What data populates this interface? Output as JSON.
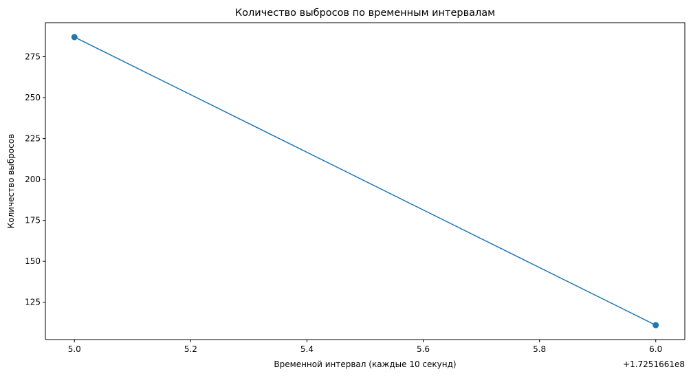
{
  "chart_data": {
    "type": "line",
    "title": "Количество выбросов по временным интервалам",
    "xlabel": "Временной интервал (каждые 10 секунд)",
    "ylabel": "Количество выбросов",
    "x_offset_label": "+1.7251661e8",
    "x": [
      5.0,
      6.0
    ],
    "series": [
      {
        "values": [
          287,
          111
        ]
      }
    ],
    "xlim": [
      4.95,
      6.05
    ],
    "ylim": [
      102.2,
      295.8
    ],
    "x_ticks": [
      5.0,
      5.2,
      5.4,
      5.6,
      5.8,
      6.0
    ],
    "x_tick_labels": [
      "5.0",
      "5.2",
      "5.4",
      "5.6",
      "5.8",
      "6.0"
    ],
    "y_ticks": [
      125,
      150,
      175,
      200,
      225,
      250,
      275
    ],
    "y_tick_labels": [
      "125",
      "150",
      "175",
      "200",
      "225",
      "250",
      "275"
    ],
    "grid": false,
    "marker": "circle",
    "line_color": "#1f77b4"
  }
}
